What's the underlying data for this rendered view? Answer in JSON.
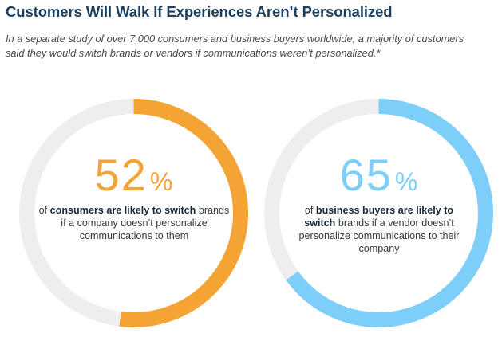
{
  "title": "Customers Will Walk If Experiences Aren’t Personalized",
  "subtitle": "In a separate study of over 7,000 consumers and business buyers worldwide, a majority of customers said they would switch brands or vendors if communications weren’t personalized.*",
  "chart_data": [
    {
      "type": "pie",
      "style": "donut",
      "value": 52,
      "unit": "%",
      "color": "#f4a434",
      "track_color": "#eeeeee",
      "caption": {
        "pre": "of ",
        "bold": "consumers are likely to switch",
        "post": " brands if a company doesn’t personalize communications to them"
      }
    },
    {
      "type": "pie",
      "style": "donut",
      "value": 65,
      "unit": "%",
      "color": "#7dcef8",
      "track_color": "#eeeeee",
      "caption": {
        "pre": "of ",
        "bold": "business buyers are likely to switch",
        "post": " brands if a vendor doesn’t personalize communications to their company"
      }
    }
  ]
}
